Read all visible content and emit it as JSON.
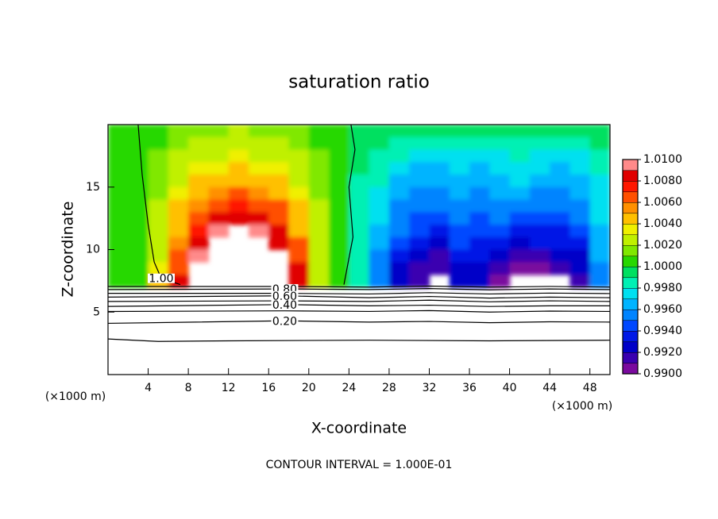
{
  "chart_data": {
    "type": "contour",
    "title": "saturation ratio",
    "x_label": "X-coordinate",
    "y_label": "Z-coordinate",
    "x_unit_label": "(×1000 m)",
    "y_unit_label": "(×1000 m)",
    "footer": "CONTOUR INTERVAL = 1.000E-01",
    "xlim": [
      0,
      50
    ],
    "ylim": [
      0,
      20
    ],
    "xticks": [
      4,
      8,
      12,
      16,
      20,
      24,
      28,
      32,
      36,
      40,
      44,
      48
    ],
    "yticks": [
      5,
      10,
      15
    ],
    "x": [
      1,
      3,
      5,
      7,
      9,
      11,
      13,
      15,
      17,
      19,
      21,
      23,
      25,
      27,
      29,
      31,
      33,
      35,
      37,
      39,
      41,
      43,
      45,
      47,
      49
    ],
    "y": [
      19.5,
      18.5,
      17.5,
      16.5,
      15.5,
      14.5,
      13.5,
      12.5,
      11.5,
      10.5,
      9.5,
      8.5,
      7.5
    ],
    "z": [
      [
        1.0005,
        1.0005,
        1.0008,
        1.0012,
        1.0015,
        1.0018,
        1.002,
        1.0018,
        1.0015,
        1.0012,
        1.0008,
        1.0005,
        0.9995,
        0.9993,
        0.9992,
        0.9992,
        0.9993,
        0.9992,
        0.999,
        0.999,
        0.9992,
        0.999,
        0.999,
        0.999,
        0.9992
      ],
      [
        1.0005,
        1.0006,
        1.001,
        1.0015,
        1.002,
        1.0024,
        1.0026,
        1.0024,
        1.002,
        1.0015,
        1.001,
        1.0005,
        0.9993,
        0.999,
        0.9988,
        0.9985,
        0.9987,
        0.9985,
        0.9985,
        0.9987,
        0.9988,
        0.9985,
        0.9985,
        0.9987,
        0.999
      ],
      [
        1.0005,
        1.0007,
        1.0012,
        1.002,
        1.0026,
        1.003,
        1.0032,
        1.003,
        1.0026,
        1.002,
        1.0012,
        1.0005,
        0.999,
        0.9985,
        0.998,
        0.9975,
        0.9972,
        0.9975,
        0.997,
        0.9978,
        0.998,
        0.9975,
        0.9972,
        0.9978,
        0.9985
      ],
      [
        1.0005,
        1.0008,
        1.0014,
        1.0025,
        1.0032,
        1.0038,
        1.004,
        1.0038,
        1.0032,
        1.0024,
        1.0014,
        1.0006,
        0.999,
        0.9982,
        0.9972,
        0.9965,
        0.9968,
        0.997,
        0.9965,
        0.997,
        0.9975,
        0.997,
        0.9965,
        0.9972,
        0.998
      ],
      [
        1.0005,
        1.0008,
        1.0016,
        1.003,
        1.004,
        1.0047,
        1.005,
        1.0047,
        1.004,
        1.003,
        1.0016,
        1.0006,
        0.9988,
        0.998,
        0.9965,
        0.996,
        0.9962,
        0.9965,
        0.996,
        0.9965,
        0.997,
        0.9962,
        0.996,
        0.9968,
        0.9978
      ],
      [
        1.0005,
        1.0009,
        1.0018,
        1.0035,
        1.005,
        1.0058,
        1.0062,
        1.0058,
        1.005,
        1.0036,
        1.0018,
        1.0006,
        0.9988,
        0.9978,
        0.9962,
        0.9955,
        0.9958,
        0.996,
        0.9955,
        0.996,
        0.9962,
        0.9958,
        0.9955,
        0.9962,
        0.9975
      ],
      [
        1.0004,
        1.001,
        1.002,
        1.004,
        1.0058,
        1.007,
        1.0075,
        1.007,
        1.006,
        1.004,
        1.002,
        1.0006,
        0.9987,
        0.9975,
        0.9958,
        0.995,
        0.9952,
        0.9955,
        0.995,
        0.9955,
        0.9955,
        0.995,
        0.995,
        0.9958,
        0.9972
      ],
      [
        1.0004,
        1.001,
        1.0022,
        1.0045,
        1.0065,
        1.008,
        1.009,
        1.0082,
        1.007,
        1.0045,
        1.002,
        1.0006,
        0.9987,
        0.997,
        0.9955,
        0.9945,
        0.9948,
        0.995,
        0.9945,
        0.995,
        0.9945,
        0.994,
        0.9942,
        0.995,
        0.997
      ],
      [
        1.0004,
        1.001,
        1.0025,
        1.005,
        1.0072,
        1.0092,
        1.012,
        1.0095,
        1.008,
        1.005,
        1.002,
        1.0006,
        0.9987,
        0.9965,
        0.995,
        0.994,
        0.9938,
        0.9945,
        0.994,
        0.994,
        0.9935,
        0.9935,
        0.9938,
        0.994,
        0.9968
      ],
      [
        1.0004,
        1.001,
        1.0028,
        1.0055,
        1.008,
        1.012,
        1.012,
        1.012,
        1.0088,
        1.006,
        1.002,
        1.0006,
        0.9987,
        0.996,
        0.994,
        0.993,
        0.9925,
        0.994,
        0.9935,
        0.993,
        0.9925,
        0.993,
        0.993,
        0.9935,
        0.9965
      ],
      [
        1.0004,
        1.001,
        1.003,
        1.006,
        1.0095,
        1.012,
        1.012,
        1.012,
        1.012,
        1.007,
        1.002,
        1.0006,
        0.9987,
        0.9958,
        0.993,
        0.992,
        0.9918,
        0.993,
        0.993,
        0.992,
        0.9915,
        0.9918,
        0.992,
        0.9925,
        0.996
      ],
      [
        1.0004,
        1.001,
        1.0035,
        1.007,
        1.012,
        1.012,
        1.012,
        1.012,
        1.012,
        1.008,
        1.002,
        1.0006,
        0.9987,
        0.9955,
        0.9925,
        0.9915,
        0.991,
        0.9925,
        0.9925,
        0.9912,
        0.9905,
        0.9908,
        0.991,
        0.992,
        0.9958
      ],
      [
        1.0004,
        1.001,
        1.004,
        1.009,
        1.012,
        1.012,
        1.012,
        1.012,
        1.012,
        1.009,
        1.002,
        1.0006,
        0.9987,
        0.9955,
        0.992,
        0.991,
        0.9895,
        0.992,
        0.992,
        0.9905,
        0.989,
        0.9895,
        0.9895,
        0.9915,
        0.9955
      ]
    ],
    "colorbar": {
      "ylim": [
        0.99,
        1.01
      ],
      "yticks": [
        {
          "value": 0.99,
          "label": "0.9900"
        },
        {
          "value": 0.992,
          "label": "0.9920"
        },
        {
          "value": 0.994,
          "label": "0.9940"
        },
        {
          "value": 0.996,
          "label": "0.9960"
        },
        {
          "value": 0.998,
          "label": "0.9980"
        },
        {
          "value": 1.0,
          "label": "1.0000"
        },
        {
          "value": 1.002,
          "label": "1.0020"
        },
        {
          "value": 1.004,
          "label": "1.0040"
        },
        {
          "value": 1.006,
          "label": "1.0060"
        },
        {
          "value": 1.008,
          "label": "1.0080"
        },
        {
          "value": 1.01,
          "label": "1.0100"
        }
      ],
      "colors": [
        "#7a0a9e",
        "#3a00b0",
        "#0000c8",
        "#0018e6",
        "#0048ff",
        "#0084ff",
        "#00b4ff",
        "#00e0f0",
        "#00f0b4",
        "#00e060",
        "#28d800",
        "#80e800",
        "#c0f000",
        "#f0f000",
        "#ffc000",
        "#ff9000",
        "#ff5000",
        "#ff1800",
        "#e00000",
        "#ff8a8a"
      ]
    },
    "contours": [
      {
        "label": "1.00",
        "x": [
          7.2,
          5.3,
          4.6,
          4.0,
          3.4,
          3.0
        ],
        "y": [
          7.2,
          7.7,
          9.0,
          12.0,
          16.0,
          20.0
        ]
      },
      {
        "x": [
          23.5,
          24.4,
          24.0,
          24.6,
          24.2
        ],
        "y": [
          7.2,
          11.0,
          15.0,
          18.0,
          20.0
        ]
      },
      {
        "x": [
          0,
          17.6,
          26,
          32,
          38,
          44,
          50
        ],
        "y": [
          7.05,
          7.05,
          7.0,
          7.08,
          7.0,
          7.05,
          7.0
        ]
      },
      {
        "label": "0.80",
        "x": [
          0,
          17.6,
          26,
          32,
          38,
          44,
          50
        ],
        "y": [
          6.8,
          6.85,
          6.8,
          6.88,
          6.78,
          6.85,
          6.8
        ]
      },
      {
        "x": [
          0,
          17.6,
          26,
          32,
          38,
          44,
          50
        ],
        "y": [
          6.5,
          6.5,
          6.45,
          6.55,
          6.45,
          6.52,
          6.48
        ]
      },
      {
        "label": "0.60",
        "x": [
          0,
          17.6,
          26,
          32,
          38,
          44,
          50
        ],
        "y": [
          6.2,
          6.3,
          6.15,
          6.25,
          6.12,
          6.2,
          6.15
        ]
      },
      {
        "x": [
          0,
          17.6,
          26,
          32,
          38,
          44,
          50
        ],
        "y": [
          5.85,
          5.9,
          5.85,
          5.95,
          5.82,
          5.9,
          5.85
        ]
      },
      {
        "label": "0.40",
        "x": [
          0,
          17.6,
          26,
          32,
          38,
          44,
          50
        ],
        "y": [
          5.45,
          5.6,
          5.5,
          5.55,
          5.45,
          5.5,
          5.5
        ]
      },
      {
        "x": [
          0,
          17.6,
          26,
          32,
          38,
          44,
          50
        ],
        "y": [
          5.05,
          5.1,
          5.05,
          5.12,
          5.0,
          5.08,
          5.05
        ]
      },
      {
        "label": "0.20",
        "x": [
          0,
          17.6,
          26,
          32,
          38,
          44,
          50
        ],
        "y": [
          4.1,
          4.3,
          4.2,
          4.25,
          4.15,
          4.22,
          4.2
        ]
      },
      {
        "x": [
          0,
          5,
          12,
          26,
          38,
          50
        ],
        "y": [
          2.85,
          2.65,
          2.7,
          2.75,
          2.7,
          2.75
        ]
      }
    ]
  }
}
